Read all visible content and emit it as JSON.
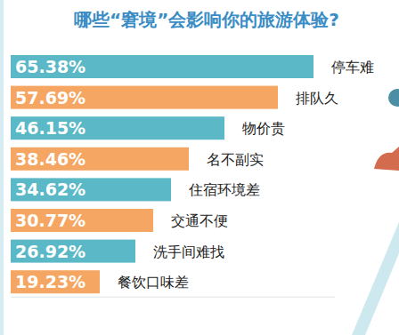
{
  "chart_data": {
    "type": "bar",
    "title": "哪些“窘境”会影响你的旅游体验?",
    "orientation": "horizontal",
    "categories": [
      "停车难",
      "排队久",
      "物价贵",
      "名不副实",
      "住宿环境差",
      "交通不便",
      "洗手间难找",
      "餐饮口味差"
    ],
    "values": [
      65.38,
      57.69,
      46.15,
      38.46,
      34.62,
      30.77,
      26.92,
      19.23
    ],
    "value_labels": [
      "65.38%",
      "57.69%",
      "46.15%",
      "38.46%",
      "34.62%",
      "30.77%",
      "26.92%",
      "19.23%"
    ],
    "colors": [
      "#5bb8c6",
      "#f5a662",
      "#5bb8c6",
      "#f5a662",
      "#5bb8c6",
      "#f5a662",
      "#5bb8c6",
      "#f5a662"
    ],
    "xlim": [
      0,
      70
    ],
    "data_labels": true,
    "tick_labels": "y",
    "grid": false
  }
}
